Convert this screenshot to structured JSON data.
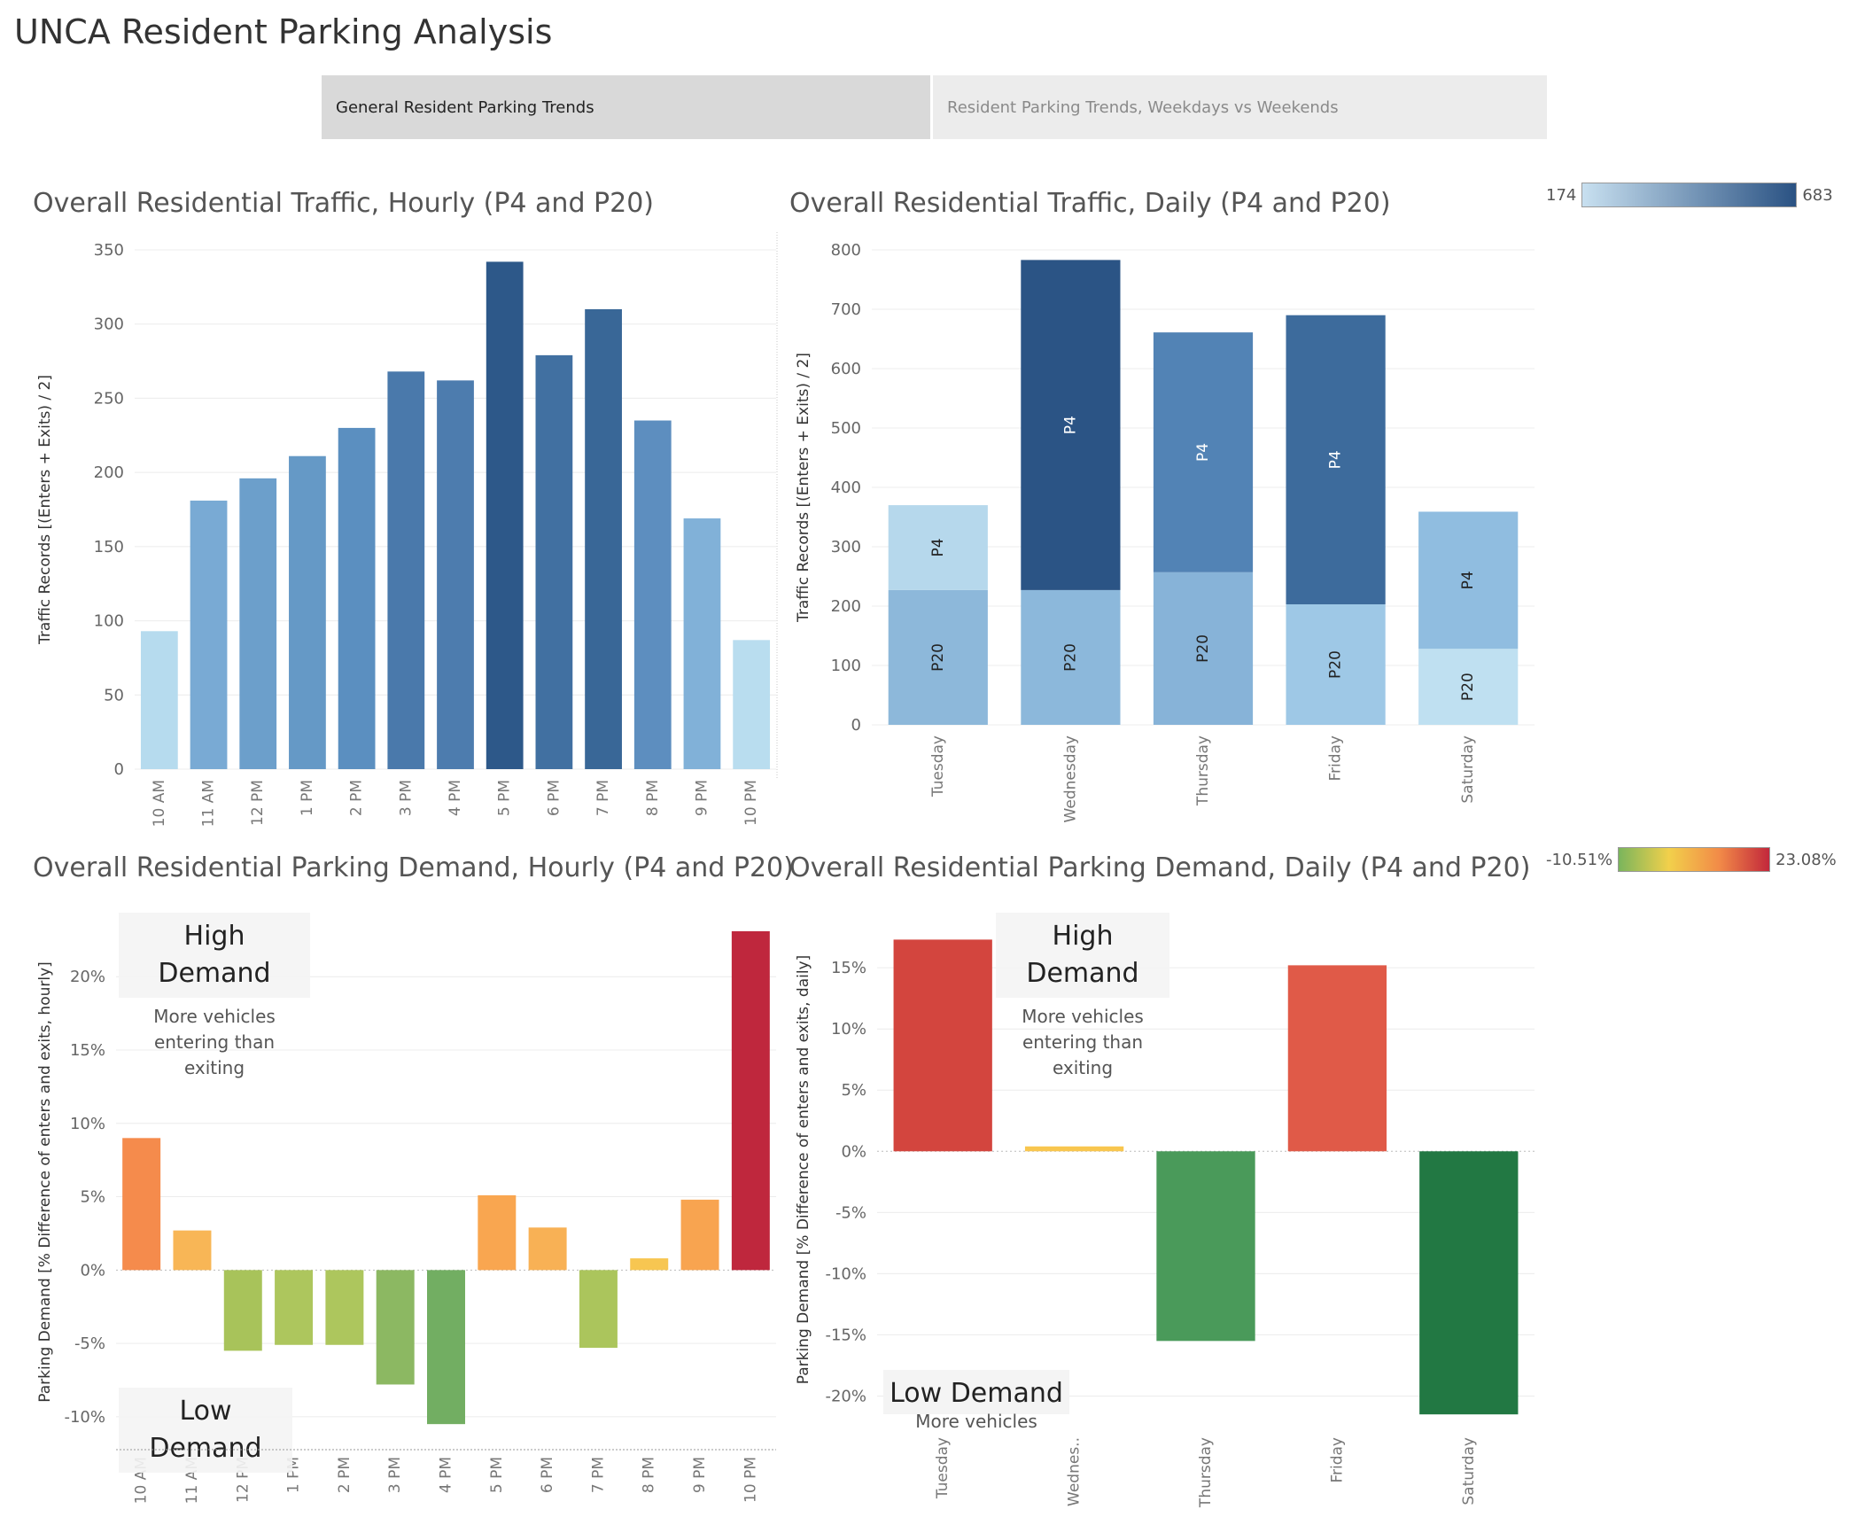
{
  "page": {
    "title": "UNCA Resident Parking Analysis"
  },
  "tabs": [
    {
      "label": "General Resident Parking Trends",
      "active": true
    },
    {
      "label": "Resident Parking Trends, Weekdays vs Weekends",
      "active": false
    }
  ],
  "legends": {
    "traffic": {
      "min_label": "174",
      "max_label": "683",
      "colors": [
        "#c8e0f0",
        "#2a5283"
      ]
    },
    "demand": {
      "min_label": "-10.51%",
      "max_label": "23.08%",
      "colors": [
        "#7ab55c",
        "#f2d04b",
        "#f28b48",
        "#c2273b"
      ]
    }
  },
  "charts": {
    "hourly_traffic": {
      "title": "Overall Residential Traffic, Hourly (P4 and P20)",
      "chart_data": {
        "type": "bar",
        "title": "Overall Residential Traffic, Hourly (P4 and P20)",
        "ylabel": "Traffic Records [(Enters + Exits) / 2]",
        "xlabel": "",
        "ylim": [
          0,
          350
        ],
        "yticks": [
          0,
          50,
          100,
          150,
          200,
          250,
          300,
          350
        ],
        "ytick_labels": [
          "0",
          "50",
          "100",
          "150",
          "200",
          "250",
          "300",
          "350"
        ],
        "categories": [
          "10 AM",
          "11 AM",
          "12 PM",
          "1 PM",
          "2 PM",
          "3 PM",
          "4 PM",
          "5 PM",
          "6 PM",
          "7 PM",
          "8 PM",
          "9 PM",
          "10 PM"
        ],
        "values": [
          93,
          181,
          196,
          211,
          230,
          268,
          262,
          342,
          279,
          310,
          235,
          169,
          87
        ],
        "colors": [
          "#b6dbee",
          "#79aad4",
          "#6c9fcb",
          "#6599c6",
          "#5b8fc0",
          "#4a79ab",
          "#4d7cae",
          "#2d5889",
          "#4170a1",
          "#396797",
          "#5d8ebf",
          "#81b1d8",
          "#b9ddef"
        ],
        "grid": true
      }
    },
    "daily_traffic": {
      "title": "Overall Residential Traffic, Daily (P4 and P20)",
      "chart_data": {
        "type": "bar",
        "stacked": true,
        "title": "Overall Residential Traffic, Daily (P4 and P20)",
        "ylabel": "Traffic Records [(Enters + Exits) / 2]",
        "xlabel": "",
        "ylim": [
          0,
          800
        ],
        "yticks": [
          0,
          100,
          200,
          300,
          400,
          500,
          600,
          700,
          800
        ],
        "ytick_labels": [
          "0",
          "100",
          "200",
          "300",
          "400",
          "500",
          "600",
          "700",
          "800"
        ],
        "categories": [
          "Tuesday",
          "Wednesday",
          "Thursday",
          "Friday",
          "Saturday"
        ],
        "series": [
          {
            "name": "P20",
            "values": [
              227,
              227,
              257,
              203,
              128
            ],
            "colors": [
              "#8db8da",
              "#8cb8db",
              "#87b3d8",
              "#9ec8e6",
              "#bfe0f1"
            ]
          },
          {
            "name": "P4",
            "values": [
              143,
              556,
              404,
              487,
              231
            ],
            "colors": [
              "#b6d8ec",
              "#2b5485",
              "#5283b5",
              "#3d6b9c",
              "#90bde0"
            ]
          }
        ],
        "grid": true
      }
    },
    "hourly_demand": {
      "title": "Overall Residential Parking Demand, Hourly (P4 and P20)",
      "chart_data": {
        "type": "bar",
        "title": "Overall Residential Parking Demand, Hourly (P4 and P20)",
        "ylabel": "Parking Demand [% Difference of enters and exits, hourly]",
        "xlabel": "",
        "ylim": [
          -12,
          24
        ],
        "yticks": [
          -10,
          -5,
          0,
          5,
          10,
          15,
          20
        ],
        "ytick_labels": [
          "-10%",
          "-5%",
          "0%",
          "5%",
          "10%",
          "15%",
          "20%"
        ],
        "categories": [
          "10 AM",
          "11 AM",
          "12 PM",
          "1 PM",
          "2 PM",
          "3 PM",
          "4 PM",
          "5 PM",
          "6 PM",
          "7 PM",
          "8 PM",
          "9 PM",
          "10 PM"
        ],
        "values": [
          9.0,
          2.7,
          -5.5,
          -5.1,
          -5.1,
          -7.8,
          -10.5,
          5.1,
          2.9,
          -5.3,
          0.8,
          4.8,
          23.1
        ],
        "colors": [
          "#f58b4c",
          "#f8b656",
          "#a8c35a",
          "#adc65d",
          "#adc65d",
          "#8cb862",
          "#72ae62",
          "#f9a650",
          "#f8b155",
          "#abc55c",
          "#f7c651",
          "#f8a450",
          "#bf273d"
        ],
        "grid": true,
        "annotations": [
          {
            "title": "High Demand",
            "text": "More vehicles entering  than exiting"
          },
          {
            "title": "Low Demand",
            "text": ""
          }
        ]
      }
    },
    "daily_demand": {
      "title": "Overall Residential Parking Demand, Daily (P4 and P20)",
      "chart_data": {
        "type": "bar",
        "title": "Overall Residential Parking Demand, Daily (P4 and P20)",
        "ylabel": "Parking Demand [% Difference of enters and exits, daily]",
        "xlabel": "",
        "ylim": [
          -22.5,
          19.5
        ],
        "yticks": [
          -20,
          -15,
          -10,
          -5,
          0,
          5,
          10,
          15
        ],
        "ytick_labels": [
          "-20%",
          "-15%",
          "-10%",
          "-5%",
          "0%",
          "5%",
          "10%",
          "15%"
        ],
        "categories": [
          "Tuesday",
          "Wednes..",
          "Thursday",
          "Friday",
          "Saturday"
        ],
        "values": [
          17.3,
          0.4,
          -15.5,
          15.2,
          -21.5
        ],
        "colors": [
          "#d3453e",
          "#f8c64f",
          "#4a9a5a",
          "#e05a48",
          "#227843"
        ],
        "grid": true,
        "annotations": [
          {
            "title": "High Demand",
            "text": "More vehicles entering  than exiting"
          },
          {
            "title": "Low Demand",
            "text": "More vehicles"
          }
        ]
      }
    }
  }
}
